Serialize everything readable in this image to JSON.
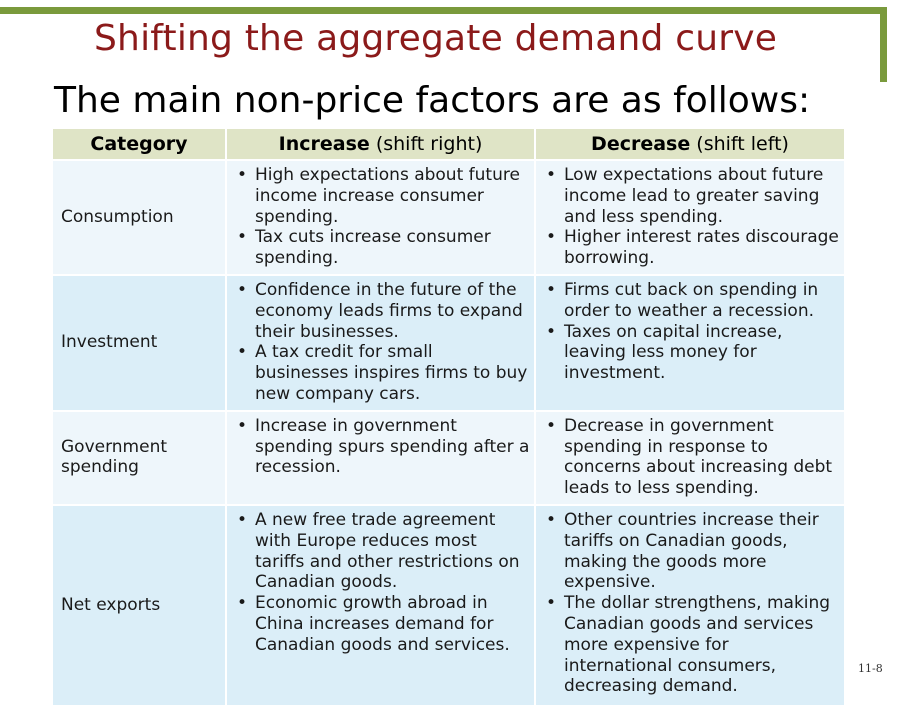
{
  "title": "Shifting the aggregate demand curve",
  "subtitle": "The main non-price factors are as follows:",
  "table": {
    "headers": {
      "category": "Category",
      "increase_bold": "Increase",
      "increase_rest": " (shift right)",
      "decrease_bold": "Decrease",
      "decrease_rest": " (shift left)"
    },
    "rows": [
      {
        "category": "Consumption",
        "increase": [
          "High expectations about future income increase consumer spending.",
          "Tax cuts increase consumer spending."
        ],
        "decrease": [
          "Low expectations about future income lead to greater saving and less spending.",
          "Higher interest rates discourage borrowing."
        ]
      },
      {
        "category": "Investment",
        "increase": [
          "Confidence in the future of the economy leads firms to expand their businesses.",
          "A tax credit for small businesses inspires firms to buy new company cars."
        ],
        "decrease": [
          "Firms cut back on spending in order to weather a recession.",
          "Taxes on capital increase, leaving less money for investment."
        ]
      },
      {
        "category": "Government spending",
        "increase": [
          "Increase in government spending spurs spending after a recession."
        ],
        "decrease": [
          "Decrease in government spending in response to concerns about increasing debt leads to less spending."
        ]
      },
      {
        "category": "Net exports",
        "increase": [
          "A new free trade agreement with Europe reduces most tariffs and other restrictions on Canadian goods.",
          "Economic growth abroad in China increases demand for Canadian goods and services."
        ],
        "decrease": [
          "Other countries increase their tariffs on Canadian goods, making the goods more expensive.",
          "The dollar strengthens, making Canadian goods and services more expensive for international consumers, decreasing demand."
        ]
      }
    ]
  },
  "slide_number": "11-8"
}
